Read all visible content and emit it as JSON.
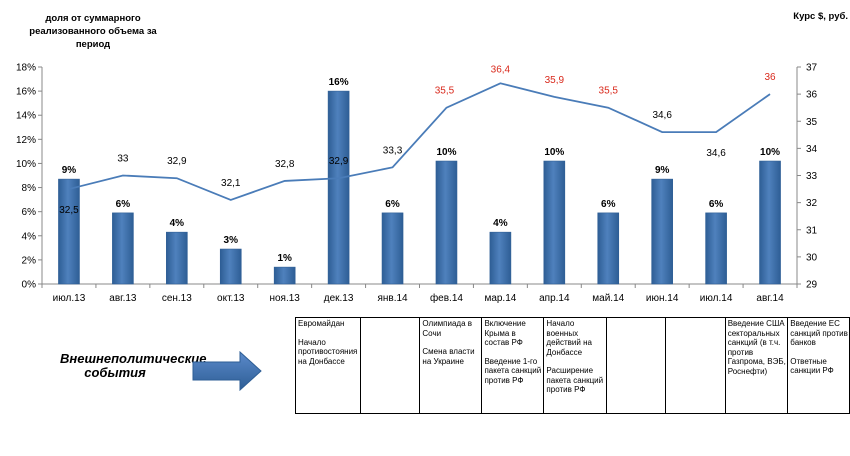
{
  "y_left_label": "доля  от суммарного реализованного  объема за период",
  "y_right_label": "Курс $, руб.",
  "events_label": "Внешнеполитические события",
  "colors": {
    "bar": "#4F81BD",
    "bar_dark": "#2E5E95",
    "line": "#4A7CB8",
    "red_label": "#D9291C",
    "axis": "#888888"
  },
  "chart_data": {
    "type": "bar+line",
    "categories": [
      "июл.13",
      "авг.13",
      "сен.13",
      "окт.13",
      "ноя.13",
      "дек.13",
      "янв.14",
      "фев.14",
      "мар.14",
      "апр.14",
      "май.14",
      "июн.14",
      "июл.14",
      "авг.14"
    ],
    "bar_values": [
      9,
      6,
      4,
      3,
      1,
      16,
      6,
      10,
      4,
      10,
      6,
      9,
      6,
      10
    ],
    "bar_value_labels": [
      "9%",
      "6%",
      "4%",
      "3%",
      "1%",
      "16%",
      "6%",
      "10%",
      "4%",
      "10%",
      "6%",
      "9%",
      "6%",
      "10%"
    ],
    "bar_heights_pct": [
      8.7,
      5.9,
      4.3,
      2.9,
      1.4,
      16.0,
      5.9,
      10.2,
      4.3,
      10.2,
      5.9,
      8.7,
      5.9,
      10.2
    ],
    "line_values": [
      32.5,
      33.0,
      32.9,
      32.1,
      32.8,
      32.9,
      33.3,
      35.5,
      36.4,
      35.9,
      35.5,
      34.6,
      34.6,
      36.0
    ],
    "line_value_labels": [
      "32,5",
      "33",
      "32,9",
      "32,1",
      "32,8",
      "32,9",
      "33,3",
      "35,5",
      "36,4",
      "35,9",
      "35,5",
      "34,6",
      "34,6",
      "36"
    ],
    "line_label_red": [
      false,
      false,
      false,
      false,
      false,
      false,
      false,
      true,
      true,
      true,
      true,
      false,
      false,
      true
    ],
    "y_left_ticks": [
      "0%",
      "2%",
      "4%",
      "6%",
      "8%",
      "10%",
      "12%",
      "14%",
      "16%",
      "18%"
    ],
    "y_left_range": [
      0,
      18
    ],
    "y_right_ticks": [
      "29",
      "30",
      "31",
      "32",
      "33",
      "34",
      "35",
      "36",
      "37"
    ],
    "y_right_range": [
      29,
      37
    ]
  },
  "events": [
    [
      "Евромайдан",
      "Начало противостояния на Донбассе"
    ],
    [],
    [
      "Олимпиада в Сочи",
      "Смена власти на Украине"
    ],
    [
      "Включение Крыма в состав РФ",
      "Введение 1-го пакета санкций против РФ"
    ],
    [
      "Начало военных действий на Донбассе",
      "Расширение пакета санкций против РФ"
    ],
    [],
    [],
    [
      "Введение США секторальных санкций (в т.ч. против Газпрома, ВЭБ, Роснефти)"
    ],
    [
      "Введение ЕС санкций против банков",
      "Ответные санкции РФ"
    ]
  ]
}
